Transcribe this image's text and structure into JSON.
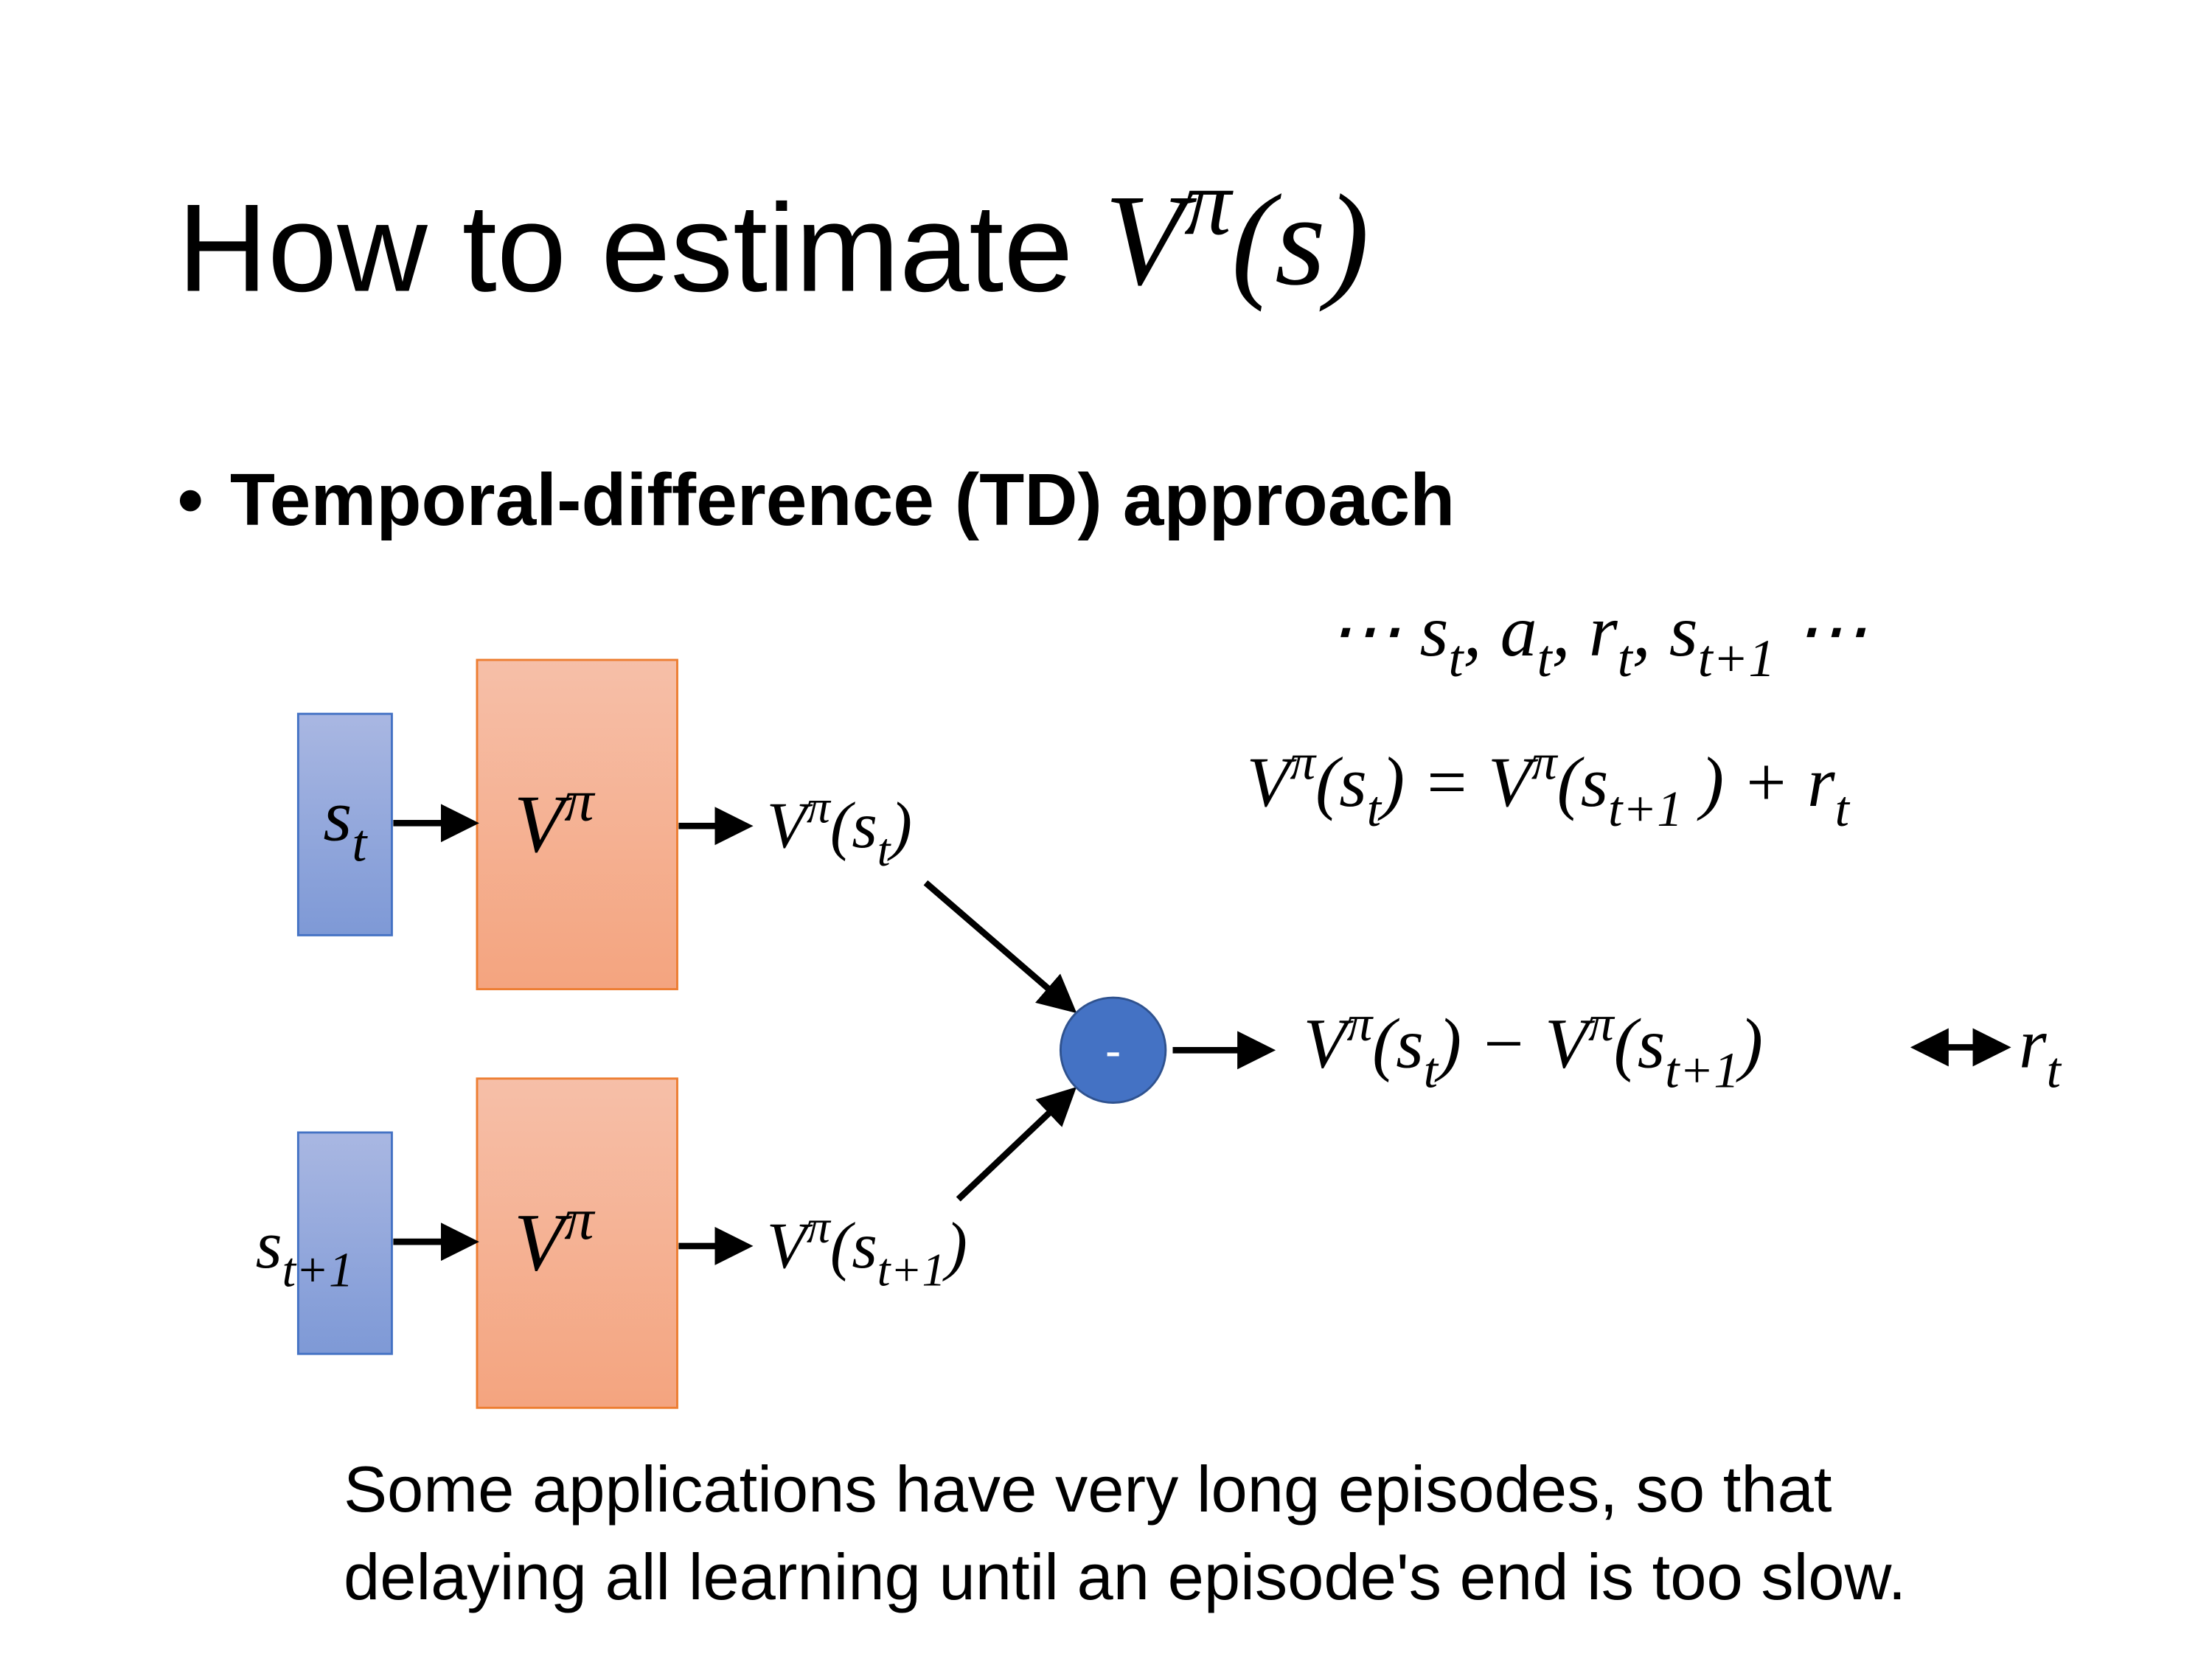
{
  "slide": {
    "title": {
      "text": "How to estimate",
      "math": [
        {
          "text": "V"
        },
        {
          "sup": "π"
        },
        {
          "text": "(s)"
        }
      ]
    },
    "bullet": "Temporal-difference (TD) approach",
    "sequence": [
      {
        "text": "⋯ s"
      },
      {
        "sub": "t"
      },
      {
        "text": ", a"
      },
      {
        "sub": "t"
      },
      {
        "text": ", r"
      },
      {
        "sub": "t"
      },
      {
        "text": ", s"
      },
      {
        "sub": "t+1"
      },
      {
        "text": " ⋯"
      }
    ],
    "equation": [
      {
        "text": "V"
      },
      {
        "sup": "π"
      },
      {
        "text": "(s"
      },
      {
        "sub": "t"
      },
      {
        "text": ") = V"
      },
      {
        "sup": "π"
      },
      {
        "text": "(s"
      },
      {
        "sub": "t+1"
      },
      {
        "text": " ) + r"
      },
      {
        "sub": "t"
      }
    ],
    "difference": [
      {
        "text": "V"
      },
      {
        "sup": "π"
      },
      {
        "text": "(s"
      },
      {
        "sub": "t"
      },
      {
        "text": ") − V"
      },
      {
        "sup": "π"
      },
      {
        "text": "(s"
      },
      {
        "sub": "t+1"
      },
      {
        "text": ")"
      }
    ],
    "target": [
      {
        "text": "r"
      },
      {
        "sub": "t"
      }
    ],
    "nodes": [
      {
        "label": [
          {
            "text": "s"
          },
          {
            "sub": "t"
          }
        ]
      },
      {
        "label": [
          {
            "text": "V"
          },
          {
            "sup": "π"
          }
        ]
      },
      {
        "label": [
          {
            "text": "V"
          },
          {
            "sup": "π"
          },
          {
            "text": "(s"
          },
          {
            "sub": "t"
          },
          {
            "text": ")"
          }
        ]
      },
      {
        "label": [
          {
            "text": "s"
          },
          {
            "sub": "t+1"
          }
        ]
      },
      {
        "label": [
          {
            "text": "V"
          },
          {
            "sup": "π"
          }
        ]
      },
      {
        "label": [
          {
            "text": "V"
          },
          {
            "sup": "π"
          },
          {
            "text": "(s"
          },
          {
            "sub": "t+1"
          },
          {
            "text": ")"
          }
        ]
      },
      {
        "label": [
          {
            "text": "-"
          }
        ]
      }
    ],
    "footnote": [
      "Some applications have very long episodes, so that",
      "delaying all learning until an episode's end is too slow."
    ]
  }
}
